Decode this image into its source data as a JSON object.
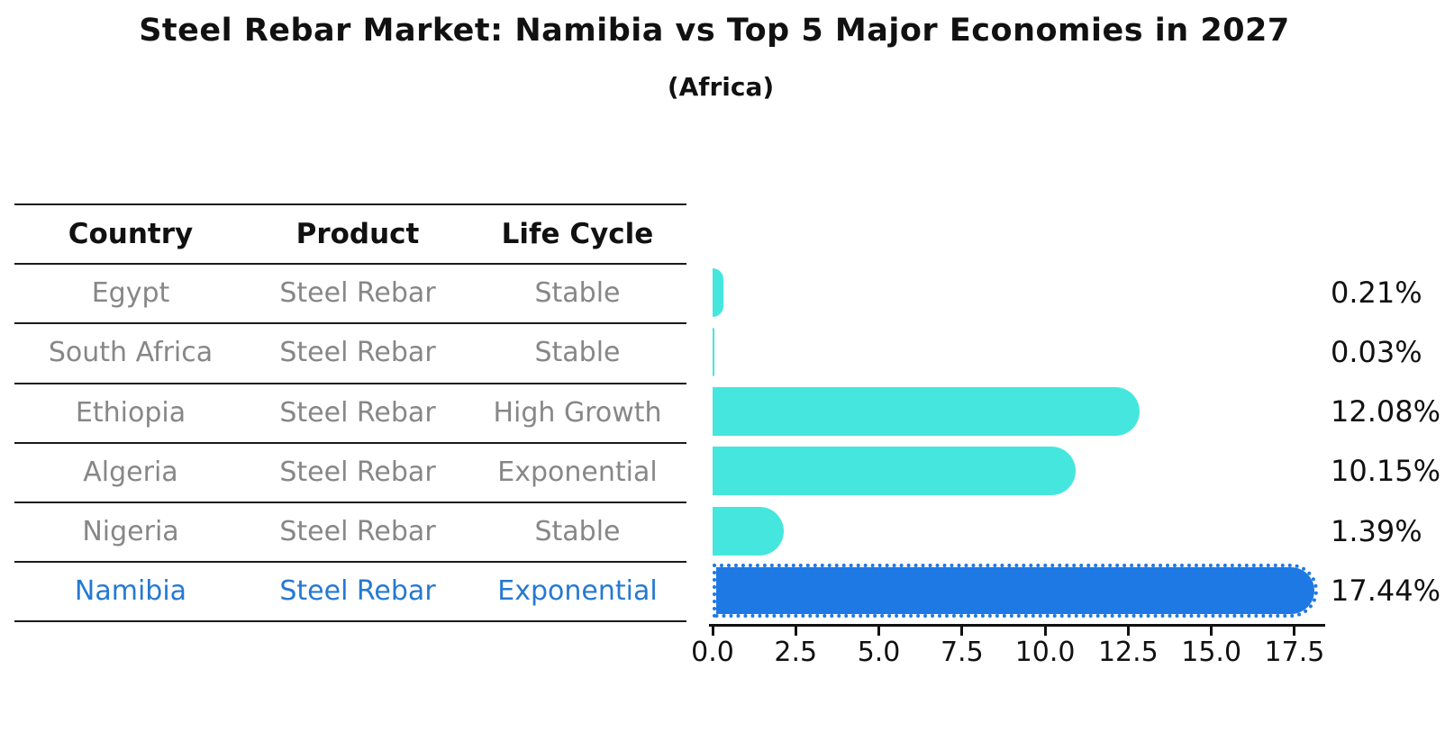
{
  "title": "Steel Rebar Market: Namibia vs Top 5 Major Economies in 2027",
  "subtitle": "(Africa)",
  "table": {
    "headers": [
      "Country",
      "Product",
      "Life Cycle"
    ],
    "rows": [
      {
        "country": "Egypt",
        "product": "Steel Rebar",
        "life_cycle": "Stable",
        "highlighted": false
      },
      {
        "country": "South Africa",
        "product": "Steel Rebar",
        "life_cycle": "Stable",
        "highlighted": false
      },
      {
        "country": "Ethiopia",
        "product": "Steel Rebar",
        "life_cycle": "High Growth",
        "highlighted": false
      },
      {
        "country": "Algeria",
        "product": "Steel Rebar",
        "life_cycle": "Exponential",
        "highlighted": false
      },
      {
        "country": "Nigeria",
        "product": "Steel Rebar",
        "life_cycle": "Stable",
        "highlighted": false
      },
      {
        "country": "Namibia",
        "product": "Steel Rebar",
        "life_cycle": "Exponential",
        "highlighted": true
      }
    ]
  },
  "chart_data": {
    "type": "bar",
    "orientation": "horizontal",
    "title": "Steel Rebar Market: Namibia vs Top 5 Major Economies in 2027",
    "subtitle": "(Africa)",
    "categories": [
      "Egypt",
      "South Africa",
      "Ethiopia",
      "Algeria",
      "Nigeria",
      "Namibia"
    ],
    "values": [
      0.21,
      0.03,
      12.08,
      10.15,
      1.39,
      17.44
    ],
    "value_labels": [
      "0.21%",
      "0.03%",
      "12.08%",
      "10.15%",
      "1.39%",
      "17.44%"
    ],
    "unit": "%",
    "xlim": [
      0,
      18.4
    ],
    "x_tick_values": [
      0,
      2.5,
      5,
      7.5,
      10,
      12.5,
      15,
      17.5
    ],
    "x_ticks": [
      "0.0",
      "2.5",
      "5.0",
      "7.5",
      "10.0",
      "12.5",
      "15.0",
      "17.5"
    ],
    "grid": false,
    "legend": false,
    "highlight_index": 5,
    "colors": {
      "bar": "#45E6DE",
      "highlight_bar": "#1E79E5",
      "highlight_text": "#2579D2",
      "table_text": "#878787",
      "header_text": "#111111",
      "axis": "#111111"
    }
  }
}
